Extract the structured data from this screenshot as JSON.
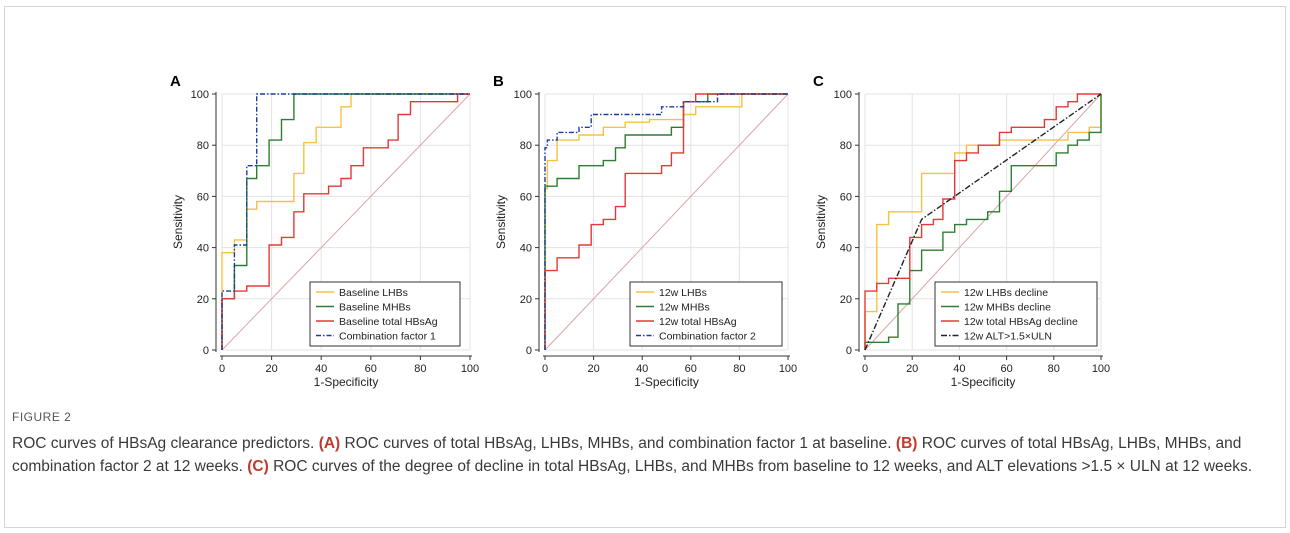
{
  "figure": {
    "label": "FIGURE 2",
    "caption_intro": "ROC curves of HBsAg clearance predictors.",
    "panels_caption": [
      {
        "tag": "(A)",
        "text": "ROC curves of total HBsAg, LHBs, MHBs, and combination factor 1 at baseline."
      },
      {
        "tag": "(B)",
        "text": "ROC curves of total HBsAg, LHBs, MHBs, and combination factor 2 at 12 weeks."
      },
      {
        "tag": "(C)",
        "text": "ROC curves of the degree of decline in total HBsAg, LHBs, and MHBs from baseline to 12 weeks, and ALT elevations >1.5 × ULN at 12 weeks."
      }
    ]
  },
  "colors": {
    "yellow": "#f5c242",
    "green": "#2e7d32",
    "red": "#e53935",
    "blue": "#1a3d9c",
    "black": "#222222",
    "diagonal": "#d8a6a6"
  },
  "chart_data": [
    {
      "type": "line",
      "panel": "A",
      "xlabel": "1-Specificity",
      "ylabel": "Sensitivity",
      "xlim": [
        0,
        100
      ],
      "ylim": [
        0,
        100
      ],
      "xticks": [
        "0",
        "20",
        "40",
        "60",
        "80",
        "100"
      ],
      "yticks": [
        "0",
        "20",
        "40",
        "60",
        "80",
        "100"
      ],
      "legend": "bottom-right",
      "series": [
        {
          "name": "Baseline LHBs",
          "color": "yellow",
          "dash": "",
          "points": [
            [
              0,
              0
            ],
            [
              0,
              38
            ],
            [
              5,
              38
            ],
            [
              5,
              43
            ],
            [
              10,
              43
            ],
            [
              10,
              55
            ],
            [
              14,
              55
            ],
            [
              14,
              58
            ],
            [
              29,
              58
            ],
            [
              29,
              69
            ],
            [
              33,
              69
            ],
            [
              33,
              81
            ],
            [
              38,
              81
            ],
            [
              38,
              87
            ],
            [
              48,
              87
            ],
            [
              48,
              95
            ],
            [
              52,
              95
            ],
            [
              52,
              100
            ],
            [
              100,
              100
            ]
          ]
        },
        {
          "name": "Baseline MHBs",
          "color": "green",
          "dash": "",
          "points": [
            [
              0,
              0
            ],
            [
              0,
              20
            ],
            [
              5,
              20
            ],
            [
              5,
              33
            ],
            [
              10,
              33
            ],
            [
              10,
              67
            ],
            [
              14,
              67
            ],
            [
              14,
              72
            ],
            [
              19,
              72
            ],
            [
              19,
              82
            ],
            [
              24,
              82
            ],
            [
              24,
              90
            ],
            [
              29,
              90
            ],
            [
              29,
              100
            ],
            [
              100,
              100
            ]
          ]
        },
        {
          "name": "Baseline total HBsAg",
          "color": "red",
          "dash": "",
          "points": [
            [
              0,
              0
            ],
            [
              0,
              20
            ],
            [
              5,
              20
            ],
            [
              5,
              23
            ],
            [
              10,
              23
            ],
            [
              10,
              25
            ],
            [
              19,
              25
            ],
            [
              19,
              41
            ],
            [
              24,
              41
            ],
            [
              24,
              44
            ],
            [
              29,
              44
            ],
            [
              29,
              54
            ],
            [
              33,
              54
            ],
            [
              33,
              61
            ],
            [
              43,
              61
            ],
            [
              43,
              64
            ],
            [
              48,
              64
            ],
            [
              48,
              67
            ],
            [
              52,
              67
            ],
            [
              52,
              72
            ],
            [
              57,
              72
            ],
            [
              57,
              79
            ],
            [
              67,
              79
            ],
            [
              67,
              82
            ],
            [
              71,
              82
            ],
            [
              71,
              92
            ],
            [
              76,
              92
            ],
            [
              76,
              97
            ],
            [
              95,
              97
            ],
            [
              95,
              100
            ],
            [
              100,
              100
            ]
          ]
        },
        {
          "name": "Combination factor 1",
          "color": "blue",
          "dash": "5,2,1.5,2",
          "points": [
            [
              0,
              0
            ],
            [
              0,
              23
            ],
            [
              5,
              23
            ],
            [
              5,
              41
            ],
            [
              10,
              41
            ],
            [
              10,
              72
            ],
            [
              14,
              72
            ],
            [
              14,
              100
            ],
            [
              100,
              100
            ]
          ]
        }
      ]
    },
    {
      "type": "line",
      "panel": "B",
      "xlabel": "1-Specificity",
      "ylabel": "Sensitivity",
      "xlim": [
        0,
        100
      ],
      "ylim": [
        0,
        100
      ],
      "xticks": [
        "0",
        "20",
        "40",
        "60",
        "80",
        "100"
      ],
      "yticks": [
        "0",
        "20",
        "40",
        "60",
        "80",
        "100"
      ],
      "legend": "bottom-right",
      "series": [
        {
          "name": "12w LHBs",
          "color": "yellow",
          "dash": "",
          "points": [
            [
              0,
              0
            ],
            [
              0,
              63
            ],
            [
              1,
              63
            ],
            [
              1,
              74
            ],
            [
              5,
              74
            ],
            [
              5,
              82
            ],
            [
              14,
              82
            ],
            [
              14,
              84
            ],
            [
              24,
              84
            ],
            [
              24,
              87
            ],
            [
              33,
              87
            ],
            [
              33,
              89
            ],
            [
              43,
              89
            ],
            [
              43,
              90
            ],
            [
              57,
              90
            ],
            [
              57,
              92
            ],
            [
              62,
              92
            ],
            [
              62,
              95
            ],
            [
              81,
              95
            ],
            [
              81,
              100
            ],
            [
              100,
              100
            ]
          ]
        },
        {
          "name": "12w MHBs",
          "color": "green",
          "dash": "",
          "points": [
            [
              0,
              0
            ],
            [
              0,
              64
            ],
            [
              5,
              64
            ],
            [
              5,
              67
            ],
            [
              14,
              67
            ],
            [
              14,
              72
            ],
            [
              24,
              72
            ],
            [
              24,
              74
            ],
            [
              29,
              74
            ],
            [
              29,
              79
            ],
            [
              33,
              79
            ],
            [
              33,
              84
            ],
            [
              52,
              84
            ],
            [
              52,
              87
            ],
            [
              57,
              87
            ],
            [
              57,
              97
            ],
            [
              67,
              97
            ],
            [
              67,
              100
            ],
            [
              100,
              100
            ]
          ]
        },
        {
          "name": "12w total HBsAg",
          "color": "red",
          "dash": "",
          "points": [
            [
              0,
              0
            ],
            [
              0,
              31
            ],
            [
              5,
              31
            ],
            [
              5,
              36
            ],
            [
              14,
              36
            ],
            [
              14,
              41
            ],
            [
              19,
              41
            ],
            [
              19,
              49
            ],
            [
              24,
              49
            ],
            [
              24,
              51
            ],
            [
              29,
              51
            ],
            [
              29,
              56
            ],
            [
              33,
              56
            ],
            [
              33,
              69
            ],
            [
              48,
              69
            ],
            [
              48,
              72
            ],
            [
              52,
              72
            ],
            [
              52,
              77
            ],
            [
              57,
              77
            ],
            [
              57,
              97
            ],
            [
              62,
              97
            ],
            [
              62,
              100
            ],
            [
              100,
              100
            ]
          ]
        },
        {
          "name": "Combination factor 2",
          "color": "blue",
          "dash": "5,2,1.5,2",
          "points": [
            [
              0,
              0
            ],
            [
              0,
              79
            ],
            [
              1,
              79
            ],
            [
              1,
              82
            ],
            [
              5,
              82
            ],
            [
              5,
              85
            ],
            [
              14,
              85
            ],
            [
              14,
              87
            ],
            [
              19,
              87
            ],
            [
              19,
              92
            ],
            [
              48,
              92
            ],
            [
              48,
              95
            ],
            [
              57,
              95
            ],
            [
              57,
              97
            ],
            [
              71,
              97
            ],
            [
              71,
              100
            ],
            [
              100,
              100
            ]
          ]
        }
      ]
    },
    {
      "type": "line",
      "panel": "C",
      "xlabel": "1-Specificity",
      "ylabel": "Sensitivity",
      "xlim": [
        0,
        100
      ],
      "ylim": [
        0,
        100
      ],
      "xticks": [
        "0",
        "20",
        "40",
        "60",
        "80",
        "100"
      ],
      "yticks": [
        "0",
        "20",
        "40",
        "60",
        "80",
        "100"
      ],
      "legend": "bottom-right",
      "series": [
        {
          "name": "12w LHBs decline",
          "color": "yellow",
          "dash": "",
          "points": [
            [
              0,
              0
            ],
            [
              0,
              15
            ],
            [
              5,
              15
            ],
            [
              5,
              49
            ],
            [
              10,
              49
            ],
            [
              10,
              54
            ],
            [
              24,
              54
            ],
            [
              24,
              69
            ],
            [
              38,
              69
            ],
            [
              38,
              77
            ],
            [
              43,
              77
            ],
            [
              43,
              80
            ],
            [
              57,
              80
            ],
            [
              57,
              82
            ],
            [
              86,
              82
            ],
            [
              86,
              85
            ],
            [
              95,
              85
            ],
            [
              95,
              87
            ],
            [
              100,
              87
            ],
            [
              100,
              100
            ]
          ]
        },
        {
          "name": "12w MHBs decline",
          "color": "green",
          "dash": "",
          "points": [
            [
              0,
              0
            ],
            [
              0,
              3
            ],
            [
              10,
              3
            ],
            [
              10,
              5
            ],
            [
              14,
              5
            ],
            [
              14,
              18
            ],
            [
              19,
              18
            ],
            [
              19,
              31
            ],
            [
              24,
              31
            ],
            [
              24,
              39
            ],
            [
              33,
              39
            ],
            [
              33,
              46
            ],
            [
              38,
              46
            ],
            [
              38,
              49
            ],
            [
              43,
              49
            ],
            [
              43,
              51
            ],
            [
              52,
              51
            ],
            [
              52,
              54
            ],
            [
              57,
              54
            ],
            [
              57,
              62
            ],
            [
              62,
              62
            ],
            [
              62,
              72
            ],
            [
              81,
              72
            ],
            [
              81,
              77
            ],
            [
              86,
              77
            ],
            [
              86,
              80
            ],
            [
              90,
              80
            ],
            [
              90,
              82
            ],
            [
              95,
              82
            ],
            [
              95,
              85
            ],
            [
              100,
              85
            ],
            [
              100,
              100
            ]
          ]
        },
        {
          "name": "12w total HBsAg decline",
          "color": "red",
          "dash": "",
          "points": [
            [
              0,
              0
            ],
            [
              0,
              23
            ],
            [
              5,
              23
            ],
            [
              5,
              26
            ],
            [
              10,
              26
            ],
            [
              10,
              28
            ],
            [
              19,
              28
            ],
            [
              19,
              44
            ],
            [
              24,
              44
            ],
            [
              24,
              49
            ],
            [
              29,
              49
            ],
            [
              29,
              51
            ],
            [
              33,
              51
            ],
            [
              33,
              59
            ],
            [
              38,
              59
            ],
            [
              38,
              74
            ],
            [
              43,
              74
            ],
            [
              43,
              77
            ],
            [
              48,
              77
            ],
            [
              48,
              80
            ],
            [
              57,
              80
            ],
            [
              57,
              85
            ],
            [
              62,
              85
            ],
            [
              62,
              87
            ],
            [
              76,
              87
            ],
            [
              76,
              90
            ],
            [
              81,
              90
            ],
            [
              81,
              95
            ],
            [
              86,
              95
            ],
            [
              86,
              97
            ],
            [
              90,
              97
            ],
            [
              90,
              100
            ],
            [
              100,
              100
            ]
          ]
        },
        {
          "name": "12w ALT>1.5×ULN",
          "color": "black",
          "dash": "6,2,1.5,2",
          "points": [
            [
              0,
              0
            ],
            [
              24,
              51
            ],
            [
              100,
              100
            ]
          ]
        }
      ]
    }
  ]
}
